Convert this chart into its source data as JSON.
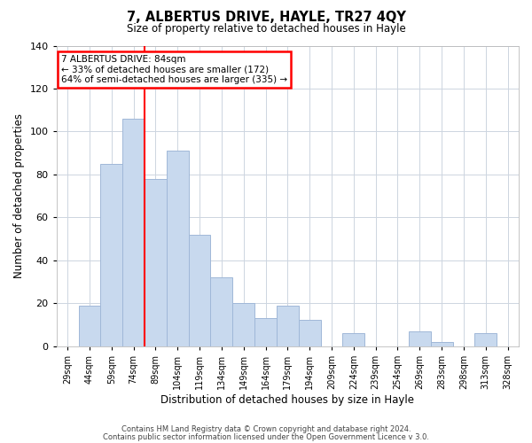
{
  "title": "7, ALBERTUS DRIVE, HAYLE, TR27 4QY",
  "subtitle": "Size of property relative to detached houses in Hayle",
  "xlabel": "Distribution of detached houses by size in Hayle",
  "ylabel": "Number of detached properties",
  "bar_color": "#c8d9ee",
  "bar_edge_color": "#a0b8d8",
  "categories": [
    "29sqm",
    "44sqm",
    "59sqm",
    "74sqm",
    "89sqm",
    "104sqm",
    "119sqm",
    "134sqm",
    "149sqm",
    "164sqm",
    "179sqm",
    "194sqm",
    "209sqm",
    "224sqm",
    "239sqm",
    "254sqm",
    "269sqm",
    "283sqm",
    "298sqm",
    "313sqm",
    "328sqm"
  ],
  "values": [
    0,
    19,
    85,
    106,
    78,
    91,
    52,
    32,
    20,
    13,
    19,
    12,
    0,
    6,
    0,
    0,
    7,
    2,
    0,
    6,
    0
  ],
  "red_line_x": 3.5,
  "annotation_title": "7 ALBERTUS DRIVE: 84sqm",
  "annotation_line1": "← 33% of detached houses are smaller (172)",
  "annotation_line2": "64% of semi-detached houses are larger (335) →",
  "ylim": [
    0,
    140
  ],
  "yticks": [
    0,
    20,
    40,
    60,
    80,
    100,
    120,
    140
  ],
  "footer_line1": "Contains HM Land Registry data © Crown copyright and database right 2024.",
  "footer_line2": "Contains public sector information licensed under the Open Government Licence v 3.0.",
  "background_color": "#ffffff",
  "grid_color": "#cdd5e0"
}
